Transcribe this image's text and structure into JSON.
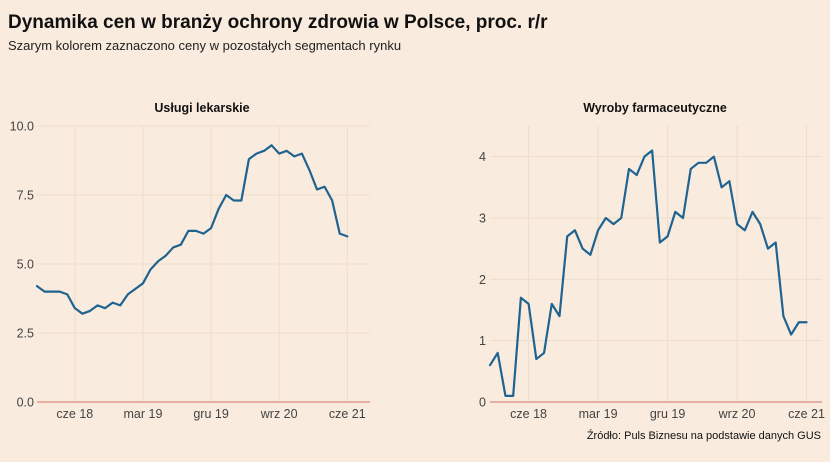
{
  "title": "Dynamika cen w branży ochrony zdrowia w Polsce, proc. r/r",
  "subtitle": "Szarym kolorem zaznaczono ceny w pozostałych segmentach rynku",
  "source": "Źródło: Puls Biznesu na podstawie danych GUS",
  "colors": {
    "line": "#1f6391",
    "zero_line": "#e08a80",
    "grid": "#efdccb",
    "background": "#f9ebdd"
  },
  "chart_data": [
    {
      "type": "line",
      "title": "Usługi lekarskie",
      "x_tick_labels": [
        "cze 18",
        "mar 19",
        "gru 19",
        "wrz 20",
        "cze 21"
      ],
      "y_tick_labels": [
        "0.0",
        "2.5",
        "5.0",
        "7.5",
        "10.0"
      ],
      "ylim": [
        0,
        10
      ],
      "x_start": "2018-01",
      "series": [
        {
          "values": [
            4.2,
            4.0,
            4.0,
            4.0,
            3.9,
            3.4,
            3.2,
            3.3,
            3.5,
            3.4,
            3.6,
            3.5,
            3.9,
            4.1,
            4.3,
            4.8,
            5.1,
            5.3,
            5.6,
            5.7,
            6.2,
            6.2,
            6.1,
            6.3,
            7.0,
            7.5,
            7.3,
            7.3,
            8.8,
            9.0,
            9.1,
            9.3,
            9.0,
            9.1,
            8.9,
            9.0,
            8.4,
            7.7,
            7.8,
            7.3,
            6.1,
            6.0
          ]
        }
      ]
    },
    {
      "type": "line",
      "title": "Wyroby farmaceutyczne",
      "x_tick_labels": [
        "cze 18",
        "mar 19",
        "gru 19",
        "wrz 20",
        "cze 21"
      ],
      "y_tick_labels": [
        "0",
        "1",
        "2",
        "3",
        "4"
      ],
      "ylim": [
        0,
        4.5
      ],
      "x_start": "2018-01",
      "series": [
        {
          "values": [
            0.6,
            0.8,
            0.1,
            0.1,
            1.7,
            1.6,
            0.7,
            0.8,
            1.6,
            1.4,
            2.7,
            2.8,
            2.5,
            2.4,
            2.8,
            3.0,
            2.9,
            3.0,
            3.8,
            3.7,
            4.0,
            4.1,
            2.6,
            2.7,
            3.1,
            3.0,
            3.8,
            3.9,
            3.9,
            4.0,
            3.5,
            3.6,
            2.9,
            2.8,
            3.1,
            2.9,
            2.5,
            2.6,
            1.4,
            1.1,
            1.3,
            1.3
          ]
        }
      ]
    }
  ]
}
